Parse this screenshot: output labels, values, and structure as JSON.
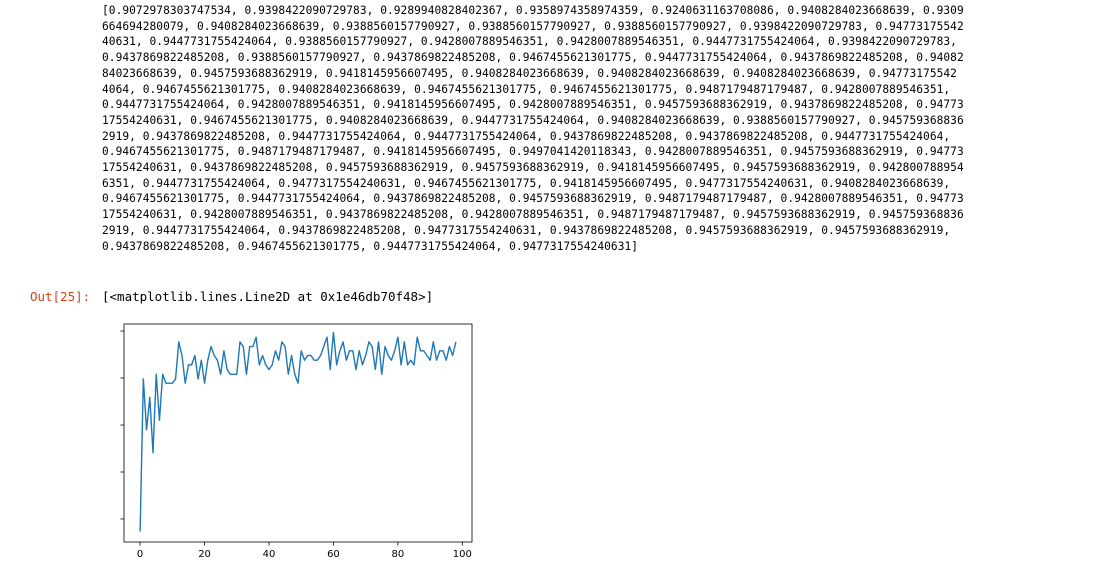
{
  "cell": {
    "output_text_lines": [
      "[0.9072978303747534, 0.9398422090729783, 0.9289940828402367, 0.9358974358974359, 0.9240631163708086, 0.9408284023668639, 0.9309",
      "664694280079, 0.9408284023668639, 0.9388560157790927, 0.9388560157790927, 0.9388560157790927, 0.9398422090729783, 0.94773175542",
      "40631, 0.9447731755424064, 0.9388560157790927, 0.9428007889546351, 0.9428007889546351, 0.9447731755424064, 0.9398422090729783,",
      "0.9437869822485208, 0.9388560157790927, 0.9437869822485208, 0.9467455621301775, 0.9447731755424064, 0.9437869822485208, 0.94082",
      "84023668639, 0.9457593688362919, 0.9418145956607495, 0.9408284023668639, 0.9408284023668639, 0.9408284023668639, 0.94773175542",
      "4064, 0.9467455621301775, 0.9408284023668639, 0.9467455621301775, 0.9467455621301775, 0.9487179487179487, 0.9428007889546351,",
      "0.9447731755424064, 0.9428007889546351, 0.9418145956607495, 0.9428007889546351, 0.9457593688362919, 0.9437869822485208, 0.94773",
      "17554240631, 0.9467455621301775, 0.9408284023668639, 0.9447731755424064, 0.9408284023668639, 0.9388560157790927, 0.945759368836",
      "2919, 0.9437869822485208, 0.9447731755424064, 0.9447731755424064, 0.9437869822485208, 0.9437869822485208, 0.9447731755424064,",
      "0.9467455621301775, 0.9487179487179487, 0.9418145956607495, 0.9497041420118343, 0.9428007889546351, 0.9457593688362919, 0.94773",
      "17554240631, 0.9437869822485208, 0.9457593688362919, 0.9457593688362919, 0.9418145956607495, 0.9457593688362919, 0.942800788954",
      "6351, 0.9447731755424064, 0.9477317554240631, 0.9467455621301775, 0.9418145956607495, 0.9477317554240631, 0.9408284023668639,",
      "0.9467455621301775, 0.9447731755424064, 0.9437869822485208, 0.9457593688362919, 0.9487179487179487, 0.9428007889546351, 0.94773",
      "17554240631, 0.9428007889546351, 0.9437869822485208, 0.9428007889546351, 0.9487179487179487, 0.9457593688362919, 0.945759368836",
      "2919, 0.9447731755424064, 0.9437869822485208, 0.9477317554240631, 0.9437869822485208, 0.9457593688362919, 0.9457593688362919,",
      "0.9437869822485208, 0.9467455621301775, 0.9447731755424064, 0.9477317554240631]"
    ],
    "out_prompt": "Out[25]:",
    "repr_text": "[<matplotlib.lines.Line2D at 0x1e46db70f48>]"
  },
  "colors": {
    "line": "#1f77b4",
    "prompt": "#d84315"
  },
  "chart_data": {
    "type": "line",
    "title": "",
    "xlabel": "",
    "ylabel": "",
    "xlim": [
      -5,
      103
    ],
    "ylim": [
      0.9051,
      0.9515
    ],
    "xticks": [
      0,
      20,
      40,
      60,
      80,
      100
    ],
    "xtick_labels": [
      "0",
      "20",
      "40",
      "60",
      "80",
      "100"
    ],
    "yticks": [
      0.91,
      0.92,
      0.93,
      0.94,
      0.95
    ],
    "ytick_labels": [
      "0.91",
      "0.92",
      "0.93",
      "0.94",
      "0.95"
    ],
    "grid": false,
    "series": [
      {
        "values": [
          0.9073,
          0.9398,
          0.929,
          0.9359,
          0.9241,
          0.9408,
          0.931,
          0.9408,
          0.9389,
          0.9389,
          0.9389,
          0.9398,
          0.9477,
          0.9448,
          0.9389,
          0.9428,
          0.9428,
          0.9448,
          0.9398,
          0.9438,
          0.9389,
          0.9438,
          0.9467,
          0.9448,
          0.9438,
          0.9408,
          0.9458,
          0.9418,
          0.9408,
          0.9408,
          0.9408,
          0.9477,
          0.9467,
          0.9408,
          0.9467,
          0.9467,
          0.9487,
          0.9428,
          0.9448,
          0.9428,
          0.9418,
          0.9428,
          0.9458,
          0.9438,
          0.9477,
          0.9467,
          0.9408,
          0.9448,
          0.9408,
          0.9389,
          0.9458,
          0.9438,
          0.9448,
          0.9448,
          0.9438,
          0.9438,
          0.9448,
          0.9467,
          0.9487,
          0.9418,
          0.9497,
          0.9428,
          0.9458,
          0.9477,
          0.9438,
          0.9458,
          0.9458,
          0.9418,
          0.9458,
          0.9428,
          0.9448,
          0.9477,
          0.9467,
          0.9418,
          0.9477,
          0.9408,
          0.9467,
          0.9448,
          0.9438,
          0.9458,
          0.9487,
          0.9428,
          0.9477,
          0.9428,
          0.9438,
          0.9428,
          0.9487,
          0.9458,
          0.9458,
          0.9448,
          0.9438,
          0.9477,
          0.9438,
          0.9458,
          0.9458,
          0.9438,
          0.9467,
          0.9448,
          0.9477
        ]
      }
    ]
  }
}
